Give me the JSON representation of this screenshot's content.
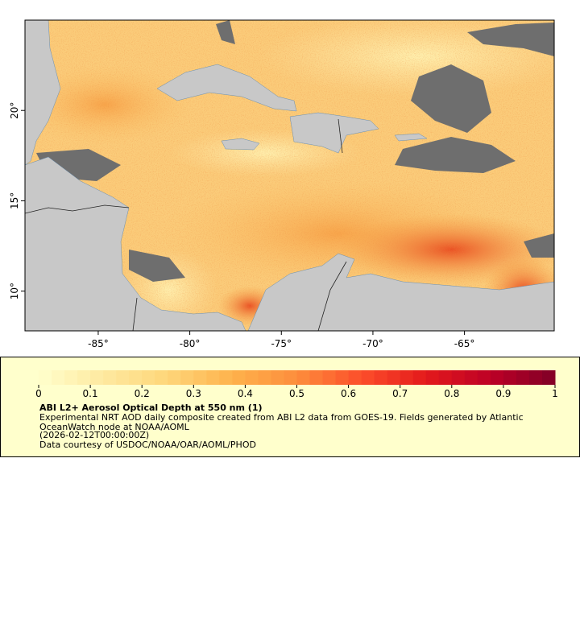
{
  "map": {
    "xlim": [
      -89,
      -60.1
    ],
    "ylim": [
      7.8,
      25
    ],
    "xticks": [
      {
        "value": -85,
        "label": "-85°"
      },
      {
        "value": -80,
        "label": "-80°"
      },
      {
        "value": -75,
        "label": "-75°"
      },
      {
        "value": -70,
        "label": "-70°"
      },
      {
        "value": -65,
        "label": "-65°"
      }
    ],
    "yticks": [
      {
        "value": 10,
        "label": "10°"
      },
      {
        "value": 15,
        "label": "15°"
      },
      {
        "value": 20,
        "label": "20°"
      }
    ]
  },
  "colorbar": {
    "lim": [
      0,
      1
    ],
    "ticks": [
      0,
      0.1,
      0.2,
      0.3,
      0.4,
      0.5,
      0.6,
      0.7,
      0.8,
      0.9,
      1
    ],
    "colors": [
      "#ffffcc",
      "#fee9a0",
      "#fed679",
      "#feb24c",
      "#fd8d3c",
      "#fc4e2a",
      "#e31a1c",
      "#bd0026",
      "#800026"
    ],
    "title": "ABI L2+ Aerosol Optical Depth at 550 nm (1)",
    "description": "Experimental NRT AOD daily composite created from ABI L2 data from GOES-19. Fields generated by Atlantic OceanWatch node at NOAA/AOML",
    "date": "(2026-02-12T00:00:00Z)",
    "credit": "Data courtesy of USDOC/NOAA/OAR/AOML/PHOD"
  }
}
